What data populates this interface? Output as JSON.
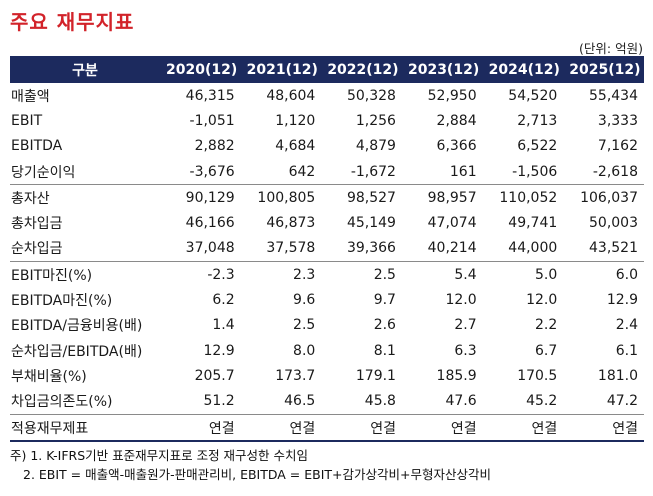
{
  "title": "주요 재무지표",
  "unit": "(단위: 억원)",
  "header": [
    "구분",
    "2020(12)",
    "2021(12)",
    "2022(12)",
    "2023(12)",
    "2024(12)",
    "2025(12)"
  ],
  "rows": [
    {
      "label": "매출액",
      "values": [
        "46,315",
        "48,604",
        "50,328",
        "52,950",
        "54,520",
        "55,434"
      ]
    },
    {
      "label": "EBIT",
      "values": [
        "-1,051",
        "1,120",
        "1,256",
        "2,884",
        "2,713",
        "3,333"
      ]
    },
    {
      "label": "EBITDA",
      "values": [
        "2,882",
        "4,684",
        "4,879",
        "6,366",
        "6,522",
        "7,162"
      ]
    },
    {
      "label": "당기순이익",
      "values": [
        "-3,676",
        "642",
        "-1,672",
        "161",
        "-1,506",
        "-2,618"
      ]
    },
    {
      "label": "총자산",
      "values": [
        "90,129",
        "100,805",
        "98,527",
        "98,957",
        "110,052",
        "106,037"
      ]
    },
    {
      "label": "총차입금",
      "values": [
        "46,166",
        "46,873",
        "45,149",
        "47,074",
        "49,741",
        "50,003"
      ]
    },
    {
      "label": "순차입금",
      "values": [
        "37,048",
        "37,578",
        "39,366",
        "40,214",
        "44,000",
        "43,521"
      ]
    },
    {
      "label": "EBIT마진(%)",
      "values": [
        "-2.3",
        "2.3",
        "2.5",
        "5.4",
        "5.0",
        "6.0"
      ]
    },
    {
      "label": "EBITDA마진(%)",
      "values": [
        "6.2",
        "9.6",
        "9.7",
        "12.0",
        "12.0",
        "12.9"
      ]
    },
    {
      "label": "EBITDA/금융비용(배)",
      "values": [
        "1.4",
        "2.5",
        "2.6",
        "2.7",
        "2.2",
        "2.4"
      ]
    },
    {
      "label": "순차입금/EBITDA(배)",
      "values": [
        "12.9",
        "8.0",
        "8.1",
        "6.3",
        "6.7",
        "6.1"
      ]
    },
    {
      "label": "부채비율(%)",
      "values": [
        "205.7",
        "173.7",
        "179.1",
        "185.9",
        "170.5",
        "181.0"
      ]
    },
    {
      "label": "차입금의존도(%)",
      "values": [
        "51.2",
        "46.5",
        "45.8",
        "47.6",
        "45.2",
        "47.2"
      ]
    },
    {
      "label": "적용재무제표",
      "values": [
        "연결",
        "연결",
        "연결",
        "연결",
        "연결",
        "연결"
      ]
    }
  ],
  "notes": [
    "주) 1. K-IFRS기반 표준재무지표로 조정 재구성한 수치임",
    "2. EBIT = 매출액-매출원가-판매관리비, EBITDA = EBIT+감가상각비+무형자산상각비"
  ]
}
